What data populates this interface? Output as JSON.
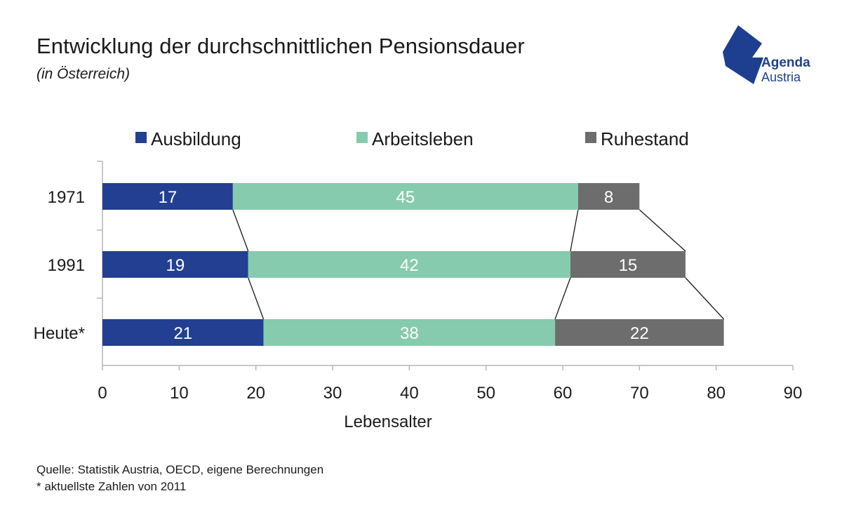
{
  "header": {
    "title": "Entwicklung der durchschnittlichen Pensionsdauer",
    "subtitle": "(in Österreich)"
  },
  "logo": {
    "line1": "Agenda",
    "line2": "Austria",
    "color": "#1e3f8f"
  },
  "chart_data": {
    "type": "bar",
    "orientation": "horizontal",
    "stacked": true,
    "categories": [
      "1971",
      "1991",
      "Heute*"
    ],
    "series": [
      {
        "name": "Ausbildung",
        "values": [
          17,
          19,
          21
        ],
        "color": "#233f92"
      },
      {
        "name": "Arbeitsleben",
        "values": [
          45,
          42,
          38
        ],
        "color": "#86cbad"
      },
      {
        "name": "Ruhestand",
        "values": [
          8,
          15,
          22
        ],
        "color": "#6d6d6d"
      }
    ],
    "xlabel": "Lebensalter",
    "ylabel": "",
    "xlim": [
      0,
      90
    ],
    "xticks": [
      0,
      10,
      20,
      30,
      40,
      50,
      60,
      70,
      80,
      90
    ],
    "legend_position": "top",
    "grid": false,
    "connector_lines": true
  },
  "footer": {
    "source": "Quelle: Statistik Austria, OECD, eigene Berechnungen",
    "footnote": "* aktuellste Zahlen von 2011"
  }
}
